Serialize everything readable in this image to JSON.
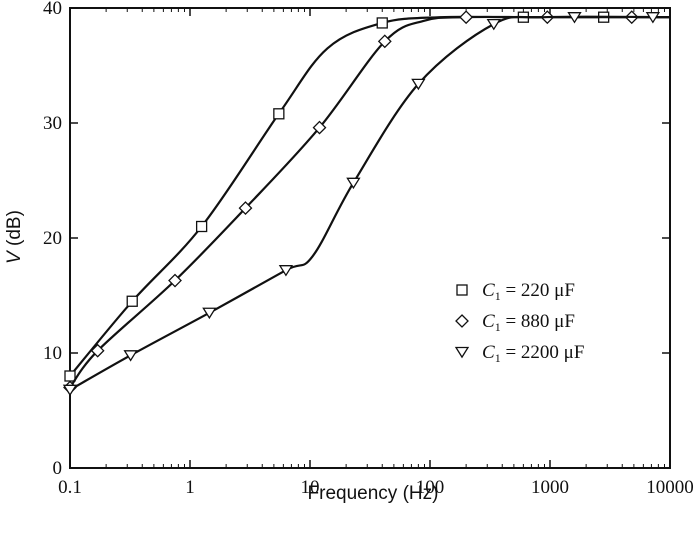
{
  "chart_data": {
    "type": "line",
    "xlabel": "Frequency (Hz)",
    "ylabel_var": "V",
    "ylabel_unit": " (dB)",
    "x_scale": "log",
    "xlim": [
      0.1,
      10000
    ],
    "ylim": [
      0,
      40
    ],
    "x_ticks": [
      0.1,
      1,
      10,
      100,
      1000,
      10000
    ],
    "x_tick_labels": [
      "0.1",
      "1",
      "10",
      "100",
      "1000",
      "10000"
    ],
    "y_ticks": [
      0,
      10,
      20,
      30,
      40
    ],
    "y_tick_labels": [
      "0",
      "10",
      "20",
      "30",
      "40"
    ],
    "grid": false,
    "legend_position": "right",
    "series": [
      {
        "name": "C1 = 220 μF",
        "legend_var": "C",
        "legend_sub": "1",
        "legend_value": " = 220 ",
        "legend_unit": "μF",
        "marker": "square",
        "points": [
          [
            0.1,
            8
          ],
          [
            0.33,
            14.5
          ],
          [
            1.25,
            21
          ],
          [
            5.5,
            30.8
          ],
          [
            40,
            38.7
          ],
          [
            600,
            39.2
          ],
          [
            2800,
            39.2
          ]
        ],
        "curve": [
          [
            0.1,
            8
          ],
          [
            0.33,
            14.5
          ],
          [
            1.25,
            21
          ],
          [
            5.5,
            30.8
          ],
          [
            14,
            36.5
          ],
          [
            40,
            38.7
          ],
          [
            120,
            39.2
          ],
          [
            600,
            39.2
          ],
          [
            10000,
            39.2
          ]
        ]
      },
      {
        "name": "C1 = 880 μF",
        "legend_var": "C",
        "legend_sub": "1",
        "legend_value": " = 880 ",
        "legend_unit": "μF",
        "marker": "diamond",
        "points": [
          [
            0.1,
            7
          ],
          [
            0.17,
            10.2
          ],
          [
            0.75,
            16.3
          ],
          [
            2.9,
            22.6
          ],
          [
            12,
            29.6
          ],
          [
            42,
            37.1
          ],
          [
            200,
            39.2
          ],
          [
            950,
            39.2
          ],
          [
            4800,
            39.2
          ]
        ],
        "curve": [
          [
            0.1,
            7
          ],
          [
            0.17,
            10.2
          ],
          [
            0.75,
            16.3
          ],
          [
            2.9,
            22.6
          ],
          [
            12,
            29.6
          ],
          [
            42,
            37.1
          ],
          [
            90,
            38.9
          ],
          [
            200,
            39.2
          ],
          [
            1000,
            39.2
          ],
          [
            10000,
            39.2
          ]
        ]
      },
      {
        "name": "C1 = 2200 μF",
        "legend_var": "C",
        "legend_sub": "1",
        "legend_value": " = 2200 ",
        "legend_unit": "μF",
        "marker": "triangle-down",
        "points": [
          [
            0.1,
            6.8
          ],
          [
            0.32,
            9.8
          ],
          [
            1.45,
            13.5
          ],
          [
            6.3,
            17.2
          ],
          [
            23,
            24.8
          ],
          [
            80,
            33.4
          ],
          [
            340,
            38.6
          ],
          [
            1600,
            39.2
          ],
          [
            7200,
            39.2
          ]
        ],
        "curve": [
          [
            0.1,
            6.8
          ],
          [
            0.32,
            9.8
          ],
          [
            1.45,
            13.5
          ],
          [
            6.3,
            17.2
          ],
          [
            10.5,
            18.4
          ],
          [
            23,
            24.8
          ],
          [
            80,
            33.4
          ],
          [
            340,
            38.6
          ],
          [
            900,
            39.2
          ],
          [
            10000,
            39.2
          ]
        ]
      }
    ]
  }
}
